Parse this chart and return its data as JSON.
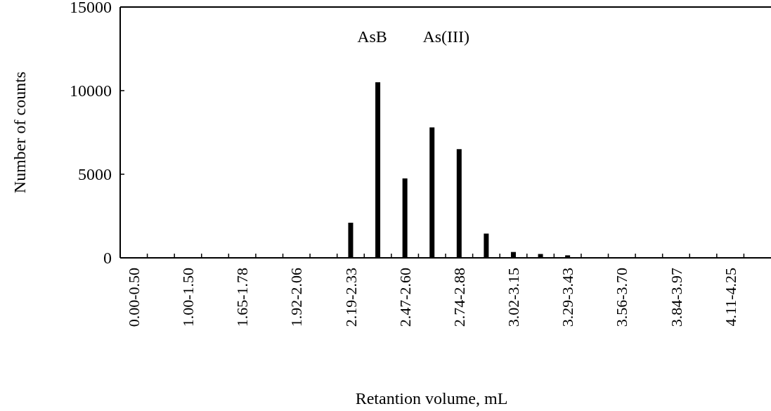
{
  "chart_data": {
    "type": "bar",
    "xlabel": "Retantion volume, mL",
    "ylabel": "Number of counts",
    "categories": [
      "0.00-0.50",
      null,
      "1.00-1.50",
      null,
      "1.65-1.78",
      null,
      "1.92-2.06",
      null,
      "2.19-2.33",
      null,
      "2.47-2.60",
      null,
      "2.74-2.88",
      null,
      "3.02-3.15",
      null,
      "3.29-3.43",
      null,
      "3.56-3.70",
      null,
      "3.84-3.97",
      null,
      "4.11-4.25",
      null
    ],
    "values": [
      0,
      0,
      0,
      0,
      0,
      0,
      0,
      0,
      2100,
      10500,
      4750,
      7800,
      6500,
      1450,
      350,
      230,
      150,
      0,
      0,
      0,
      0,
      0,
      0,
      0
    ],
    "color": "#000000",
    "ylim": [
      0,
      15000
    ],
    "yticks": [
      0,
      5000,
      10000,
      15000
    ],
    "grid": false,
    "annotations": [
      "AsB",
      "As(III)"
    ]
  }
}
